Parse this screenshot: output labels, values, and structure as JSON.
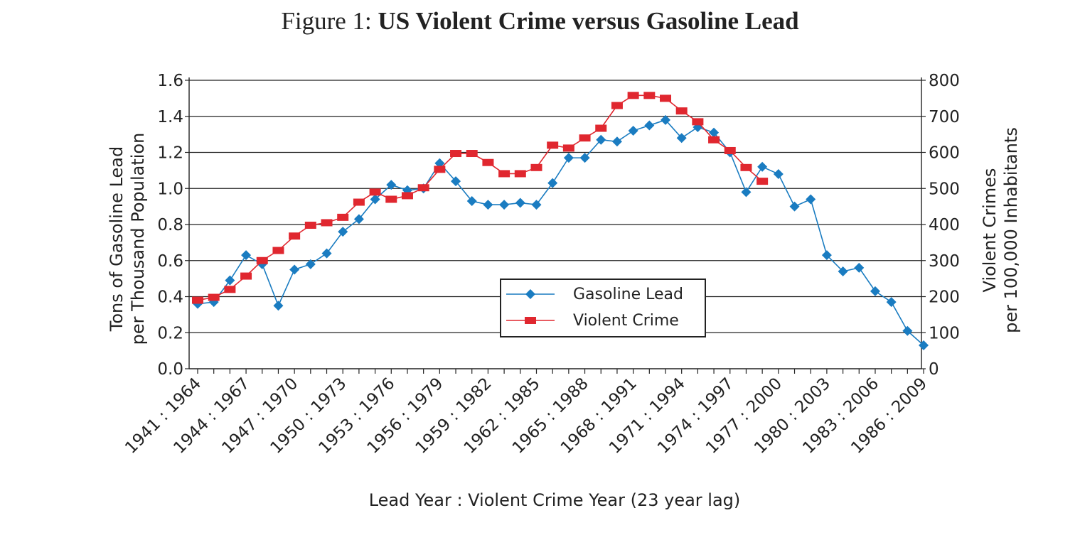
{
  "figure": {
    "title_prefix": "Figure 1:",
    "title_main": "US Violent Crime versus Gasoline Lead"
  },
  "chart_data": {
    "type": "line",
    "title": "US Violent Crime versus Gasoline Lead",
    "xlabel": "Lead Year : Violent Crime Year (23 year lag)",
    "ylabel_left": [
      "Tons of Gasoline Lead",
      "per Thousand Population"
    ],
    "ylabel_right": [
      "Violent Crimes",
      "per 100,000 Inhabitants"
    ],
    "ylim_left": [
      0,
      1.6
    ],
    "ylim_right": [
      0,
      800
    ],
    "yticks_left": [
      "0.0",
      "0.2",
      "0.4",
      "0.6",
      "0.8",
      "1.0",
      "1.2",
      "1.4",
      "1.6"
    ],
    "yticks_right": [
      "0",
      "100",
      "200",
      "300",
      "400",
      "500",
      "600",
      "700",
      "800"
    ],
    "grid": true,
    "legend_position": "center",
    "x_start": 1941,
    "lag_years": 23,
    "xtick_labels": [
      "1941 : 1964",
      "1944 : 1967",
      "1947 : 1970",
      "1950 : 1973",
      "1953 : 1976",
      "1956 : 1979",
      "1959 : 1982",
      "1962 : 1985",
      "1965 : 1988",
      "1968 : 1991",
      "1971 : 1994",
      "1974 : 1997",
      "1977 : 2000",
      "1980 : 2003",
      "1983 : 2006",
      "1986 : 2009"
    ],
    "series": [
      {
        "name": "Gasoline Lead",
        "axis": "left",
        "color": "#1a7cc1",
        "marker": "diamond",
        "values": [
          0.36,
          0.37,
          0.49,
          0.63,
          0.58,
          0.35,
          0.55,
          0.58,
          0.64,
          0.76,
          0.83,
          0.94,
          1.02,
          0.99,
          1.0,
          1.14,
          1.04,
          0.93,
          0.91,
          0.91,
          0.92,
          0.91,
          1.03,
          1.17,
          1.17,
          1.27,
          1.26,
          1.32,
          1.35,
          1.38,
          1.28,
          1.34,
          1.31,
          1.2,
          0.98,
          1.12,
          1.08,
          0.9,
          0.94,
          0.63,
          0.54,
          0.56,
          0.43,
          0.37,
          0.21,
          0.13
        ]
      },
      {
        "name": "Violent Crime",
        "axis": "right",
        "color": "#e0272f",
        "marker": "square",
        "values": [
          190,
          198,
          220,
          257,
          300,
          328,
          368,
          398,
          405,
          420,
          462,
          490,
          470,
          480,
          502,
          553,
          597,
          597,
          572,
          541,
          541,
          558,
          620,
          612,
          640,
          667,
          730,
          758,
          758,
          750,
          715,
          685,
          635,
          605,
          558,
          520
        ]
      }
    ]
  }
}
